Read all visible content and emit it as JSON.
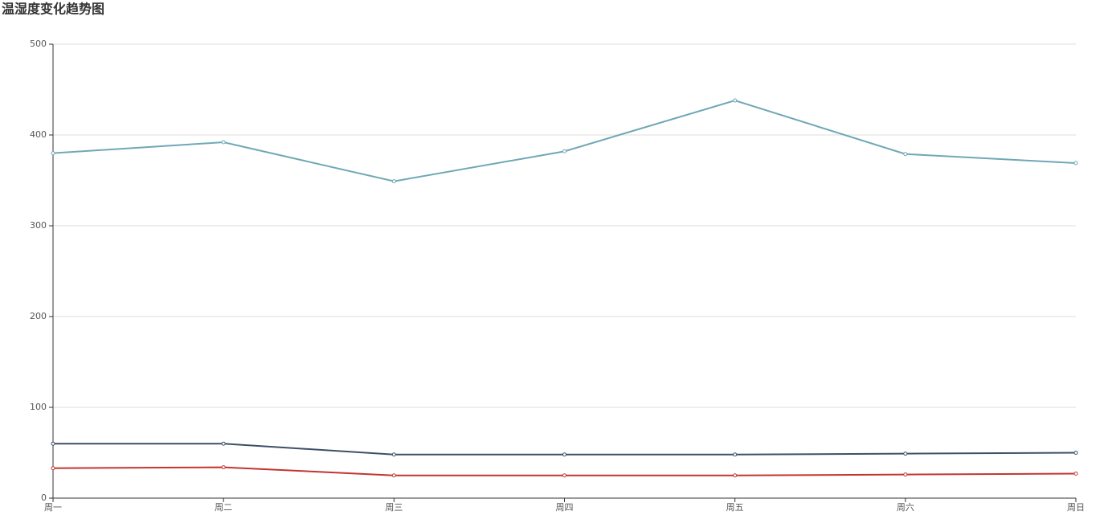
{
  "chart_data": {
    "type": "line",
    "title": "温湿度变化趋势图",
    "categories": [
      "周一",
      "周二",
      "周三",
      "周四",
      "周五",
      "周六",
      "周日"
    ],
    "series": [
      {
        "color": "#6fa8b5",
        "values": [
          380,
          392,
          349,
          382,
          438,
          379,
          369
        ]
      },
      {
        "color": "#3d5066",
        "values": [
          60,
          60,
          48,
          48,
          48,
          49,
          50
        ]
      },
      {
        "color": "#c23531",
        "values": [
          33,
          34,
          25,
          25,
          25,
          26,
          27
        ]
      }
    ],
    "ylim": [
      0,
      500
    ],
    "yticks": [
      0,
      100,
      200,
      300,
      400,
      500
    ],
    "grid": true
  }
}
